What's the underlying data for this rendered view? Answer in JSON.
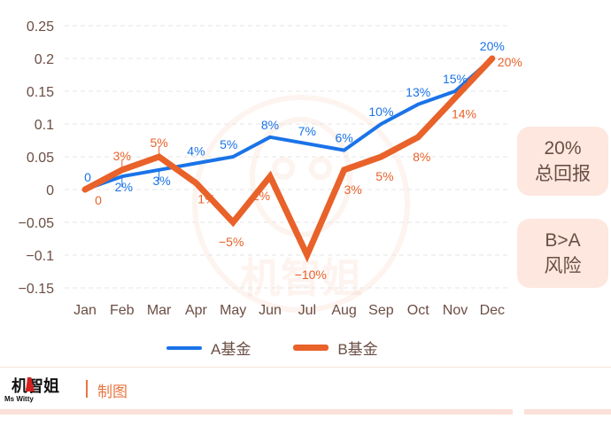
{
  "chart_data": {
    "type": "line",
    "title": "",
    "xlabel": "",
    "ylabel": "",
    "categories": [
      "Jan",
      "Feb",
      "Mar",
      "Apr",
      "May",
      "Jun",
      "Jul",
      "Aug",
      "Sep",
      "Oct",
      "Nov",
      "Dec"
    ],
    "series": [
      {
        "name": "A基金",
        "color": "#1a73e8",
        "values": [
          0,
          0.02,
          0.03,
          0.04,
          0.05,
          0.08,
          0.07,
          0.06,
          0.1,
          0.13,
          0.15,
          0.2
        ],
        "labels": [
          "0",
          "2%",
          "3%",
          "4%",
          "5%",
          "8%",
          "7%",
          "6%",
          "10%",
          "13%",
          "15%",
          "20%"
        ]
      },
      {
        "name": "B基金",
        "color": "#e8622a",
        "values": [
          0,
          0.03,
          0.05,
          0.01,
          -0.05,
          0.02,
          -0.1,
          0.03,
          0.05,
          0.08,
          0.14,
          0.2
        ],
        "labels": [
          "0",
          "3%",
          "5%",
          "1%",
          "−5%",
          "2%",
          "−10%",
          "3%",
          "5%",
          "8%",
          "14%",
          "20%"
        ]
      }
    ],
    "yticks": [
      "0.25",
      "0.2",
      "0.15",
      "0.1",
      "0.05",
      "0",
      "−0.05",
      "−0.1",
      "−0.15"
    ],
    "ylim": [
      -0.15,
      0.25
    ],
    "grid": true,
    "legend_position": "bottom"
  },
  "annotations": {
    "box1": {
      "line1": "20%",
      "line2": "总回报"
    },
    "box2": {
      "line1": "B>A",
      "line2": "风险"
    }
  },
  "legend": {
    "a_label": "A基金",
    "b_label": "B基金"
  },
  "footer": {
    "brand_cn": "机智姐",
    "brand_en": "Ms Witty",
    "credit": "制图"
  },
  "watermark": {
    "cn": "机智姐",
    "en": "Ms Witty"
  }
}
